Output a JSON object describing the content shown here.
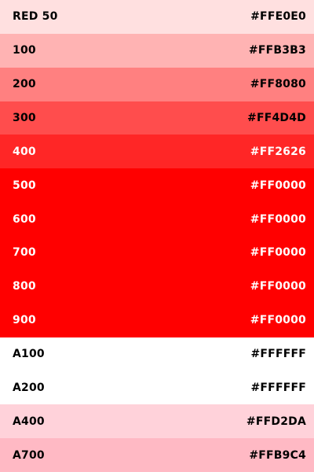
{
  "palette": {
    "name": "RED",
    "swatches": [
      {
        "label": "RED 50",
        "hex": "#FFE0E0",
        "color": "#FFE0E0",
        "text_color": "#000000"
      },
      {
        "label": "100",
        "hex": "#FFB3B3",
        "color": "#FFB3B3",
        "text_color": "#000000"
      },
      {
        "label": "200",
        "hex": "#FF8080",
        "color": "#FF8080",
        "text_color": "#000000"
      },
      {
        "label": "300",
        "hex": "#FF4D4D",
        "color": "#FF4D4D",
        "text_color": "#000000"
      },
      {
        "label": "400",
        "hex": "#FF2626",
        "color": "#FF2626",
        "text_color": "#FFFFFF"
      },
      {
        "label": "500",
        "hex": "#FF0000",
        "color": "#FF0000",
        "text_color": "#FFFFFF"
      },
      {
        "label": "600",
        "hex": "#FF0000",
        "color": "#FF0000",
        "text_color": "#FFFFFF"
      },
      {
        "label": "700",
        "hex": "#FF0000",
        "color": "#FF0000",
        "text_color": "#FFFFFF"
      },
      {
        "label": "800",
        "hex": "#FF0000",
        "color": "#FF0000",
        "text_color": "#FFFFFF"
      },
      {
        "label": "900",
        "hex": "#FF0000",
        "color": "#FF0000",
        "text_color": "#FFFFFF"
      },
      {
        "label": "A100",
        "hex": "#FFFFFF",
        "color": "#FFFFFF",
        "text_color": "#000000"
      },
      {
        "label": "A200",
        "hex": "#FFFFFF",
        "color": "#FFFFFF",
        "text_color": "#000000"
      },
      {
        "label": "A400",
        "hex": "#FFD2DA",
        "color": "#FFD2DA",
        "text_color": "#000000"
      },
      {
        "label": "A700",
        "hex": "#FFB9C4",
        "color": "#FFB9C4",
        "text_color": "#000000"
      }
    ]
  }
}
